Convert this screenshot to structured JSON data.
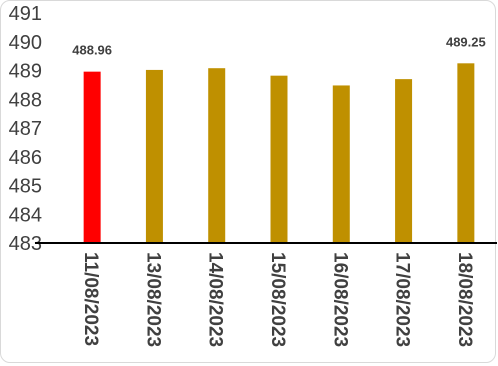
{
  "chart_data": {
    "type": "bar",
    "title": "",
    "xlabel": "",
    "ylabel": "",
    "categories": [
      "11/08/2023",
      "13/08/2023",
      "14/08/2023",
      "15/08/2023",
      "16/08/2023",
      "17/08/2023",
      "18/08/2023"
    ],
    "values": [
      488.96,
      489.02,
      489.08,
      488.82,
      488.48,
      488.7,
      489.25
    ],
    "bar_colors": [
      "#ff0000",
      "#bf9000",
      "#bf9000",
      "#bf9000",
      "#bf9000",
      "#bf9000",
      "#bf9000"
    ],
    "data_labels": [
      {
        "index": 0,
        "text": "488.96"
      },
      {
        "index": 6,
        "text": "489.25"
      }
    ],
    "ylim": [
      483,
      491
    ],
    "yticks": [
      "483",
      "484",
      "485",
      "486",
      "487",
      "488",
      "489",
      "490",
      "491"
    ],
    "grid": false,
    "legend": "none"
  }
}
